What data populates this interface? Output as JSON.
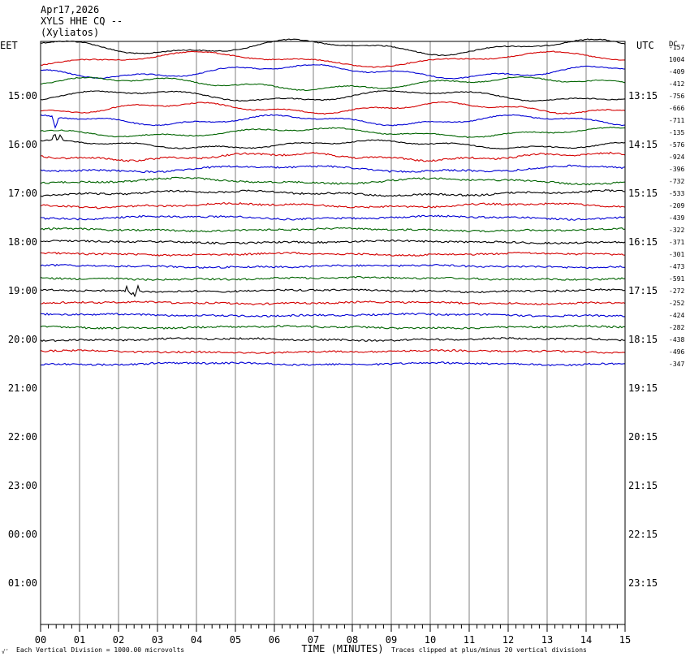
{
  "header": {
    "date": "Apr17,2026",
    "station": "XYLS HHE CQ --",
    "location": "(Xyliatos)"
  },
  "chart_data": {
    "type": "line",
    "title": "",
    "left_axis_label": "EET",
    "right_axis_label": "UTC",
    "dc_label": "DC",
    "xlabel": "TIME (MINUTES)",
    "x_ticks": [
      "00",
      "01",
      "02",
      "03",
      "04",
      "05",
      "06",
      "07",
      "08",
      "09",
      "10",
      "11",
      "12",
      "13",
      "14",
      "15"
    ],
    "xlim": [
      0,
      15
    ],
    "eet_hour_labels": [
      "15:00",
      "16:00",
      "17:00",
      "18:00",
      "19:00",
      "20:00",
      "21:00",
      "22:00",
      "23:00",
      "00:00",
      "01:00"
    ],
    "utc_hour_labels": [
      "13:15",
      "14:15",
      "15:15",
      "16:15",
      "17:15",
      "18:15",
      "19:15",
      "20:15",
      "21:15",
      "22:15",
      "23:15"
    ],
    "dc_offsets": [
      "-157",
      "1004",
      "-409",
      "-412",
      "-756",
      "-666",
      "-711",
      "-135",
      "-576",
      "-924",
      "-396",
      "-732",
      "-533",
      "-209",
      "-439",
      "-322",
      "-371",
      "-301",
      "-473",
      "-591",
      "-272",
      "-252",
      "-424",
      "-282",
      "-438",
      "-496",
      "-347"
    ],
    "trace_colors": [
      "#000000",
      "#d40000",
      "#0000d4",
      "#006400"
    ],
    "grid": "vertical",
    "footer_left": "Each Vertical Division = 1000.00 microvolts",
    "footer_right": "Traces clipped at plus/minus 20 vertical divisions",
    "footer_mark": "√̃"
  }
}
